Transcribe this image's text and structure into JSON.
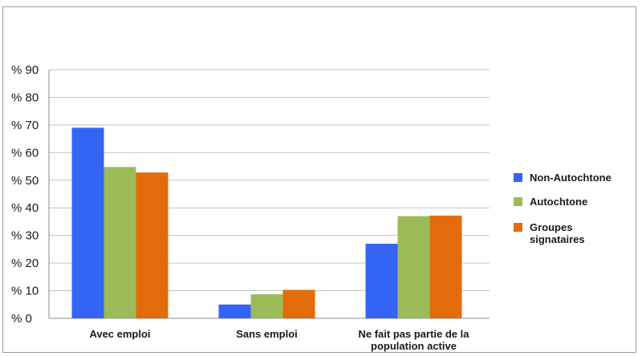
{
  "chart_data": {
    "type": "bar",
    "title": "",
    "xlabel": "",
    "ylabel": "",
    "ylim": [
      0,
      90
    ],
    "yticks": [
      0,
      10,
      20,
      30,
      40,
      50,
      60,
      70,
      80,
      90
    ],
    "ytick_prefix": "% ",
    "grid": true,
    "legend_position": "right",
    "categories": [
      [
        "Avec emploi"
      ],
      [
        "Sans emploi"
      ],
      [
        "Ne fait pas partie de la",
        "population active"
      ]
    ],
    "series": [
      {
        "name": "Non-Autochtone",
        "color": "#3464f5",
        "values": [
          69,
          5,
          27
        ]
      },
      {
        "name": "Autochtone",
        "color": "#9bbb59",
        "values": [
          54.8,
          8.7,
          37
        ]
      },
      {
        "name": "Groupes signataires",
        "legend_lines": [
          "Groupes",
          "signataires"
        ],
        "color": "#e36c0a",
        "values": [
          52.8,
          10.3,
          37.2
        ]
      }
    ]
  }
}
